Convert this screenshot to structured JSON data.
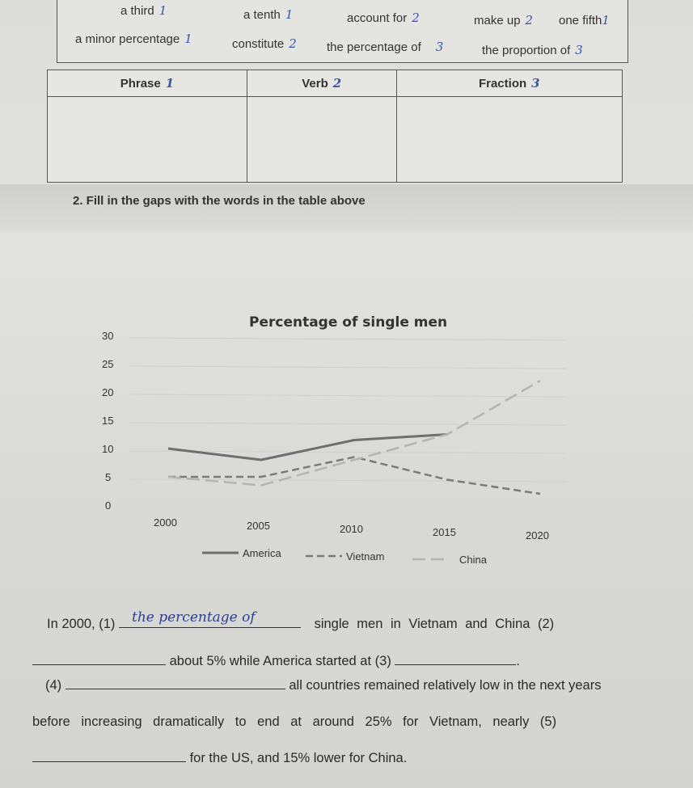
{
  "word_box": {
    "row1": [
      {
        "word": "a third",
        "mark": "1"
      },
      {
        "word": "a tenth",
        "mark": "1"
      },
      {
        "word": "account for",
        "mark": "2"
      },
      {
        "word": "make up",
        "mark": "2"
      },
      {
        "word": "one fifth",
        "mark": "1"
      }
    ],
    "row2": [
      {
        "word": "a minor percentage",
        "mark": "1"
      },
      {
        "word": "constitute",
        "mark": "2"
      },
      {
        "word": "the percentage of",
        "mark": "3"
      },
      {
        "word": "the proportion of",
        "mark": "3"
      }
    ]
  },
  "table": {
    "headers": [
      {
        "label": "Phrase",
        "mark": "1"
      },
      {
        "label": "Verb",
        "mark": "2"
      },
      {
        "label": "Fraction",
        "mark": "3"
      }
    ]
  },
  "instruction": "2. Fill in the gaps with the words in the table above",
  "chart_data": {
    "type": "line",
    "title": "Percentage of single men",
    "x": [
      2000,
      2005,
      2010,
      2015,
      2020
    ],
    "x_tick_labels": [
      "2000",
      "2005",
      "2010",
      "2015",
      "2020"
    ],
    "y_tick_labels": [
      "0",
      "5",
      "10",
      "15",
      "20",
      "25",
      "30"
    ],
    "ylim": [
      0,
      30
    ],
    "grid": true,
    "legend_position": "bottom",
    "series": [
      {
        "name": "America",
        "style": "solid",
        "color": "#6e6e6e",
        "values": [
          10,
          8,
          11.5,
          12.5,
          null
        ]
      },
      {
        "name": "Vietnam",
        "style": "dashed",
        "color": "#7a7a7a",
        "values": [
          5,
          5,
          8.5,
          4.5,
          2
        ]
      },
      {
        "name": "China",
        "style": "long-dash-light",
        "color": "#b4b4b4",
        "values": [
          5,
          3.5,
          8,
          12.5,
          22
        ]
      }
    ]
  },
  "paragraph": {
    "l1_a": "In 2000, (1)",
    "answer1": "the percentage of",
    "l1_b": "single men in Vietnam and China (2)",
    "l2_a": "about 5% while America started at (3)",
    "l2_end": ".",
    "l3_a": "(4)",
    "l3_b": "all countries remained relatively low in the next years",
    "l4": "before increasing dramatically to end at around 25% for Vietnam, nearly (5)",
    "l5": "for the US, and 15% lower for China."
  }
}
